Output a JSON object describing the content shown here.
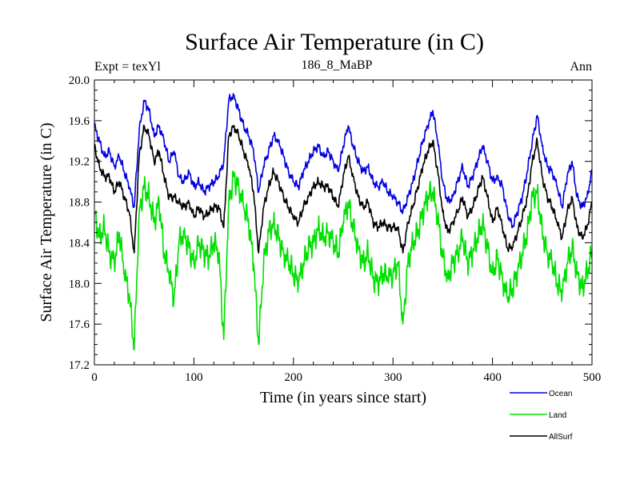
{
  "header": {
    "title": "Surface Air Temperature (in C)",
    "subtitle": "186_8_MaBP",
    "left_label": "Expt = texYl",
    "right_label": "Ann"
  },
  "chart_data": {
    "type": "line",
    "title": "Surface Air Temperature (in C)",
    "xlabel": "Time (in years since start)",
    "ylabel": "Surface Air Temperature (in C)",
    "xlim": [
      0,
      500
    ],
    "ylim": [
      17.2,
      20.0
    ],
    "xticks": [
      0,
      100,
      200,
      300,
      400,
      500
    ],
    "yticks": [
      "17.2",
      "17.6",
      "18.0",
      "18.4",
      "18.8",
      "19.2",
      "19.6",
      "20.0"
    ],
    "grid": false,
    "legend_position": "bottom-right",
    "series": [
      {
        "name": "Ocean",
        "color": "#0000e0",
        "x": [
          0,
          5,
          10,
          15,
          20,
          25,
          30,
          35,
          40,
          45,
          50,
          55,
          60,
          65,
          70,
          75,
          80,
          85,
          90,
          95,
          100,
          105,
          110,
          115,
          120,
          125,
          130,
          135,
          140,
          145,
          150,
          155,
          160,
          165,
          170,
          175,
          180,
          185,
          190,
          195,
          200,
          205,
          210,
          215,
          220,
          225,
          230,
          235,
          240,
          245,
          250,
          255,
          260,
          265,
          270,
          275,
          280,
          285,
          290,
          295,
          300,
          305,
          310,
          315,
          320,
          325,
          330,
          335,
          340,
          345,
          350,
          355,
          360,
          365,
          370,
          375,
          380,
          385,
          390,
          395,
          400,
          405,
          410,
          415,
          420,
          425,
          430,
          435,
          440,
          445,
          450,
          455,
          460,
          465,
          470,
          475,
          480,
          485,
          490,
          495,
          500
        ],
        "y": [
          19.55,
          19.4,
          19.25,
          19.3,
          19.15,
          19.25,
          19.1,
          18.95,
          18.75,
          19.5,
          19.8,
          19.7,
          19.45,
          19.55,
          19.4,
          19.2,
          19.3,
          19.05,
          19.0,
          19.1,
          18.95,
          19.0,
          18.9,
          18.95,
          19.0,
          19.05,
          19.2,
          19.8,
          19.85,
          19.7,
          19.55,
          19.45,
          19.3,
          18.9,
          19.15,
          19.3,
          19.45,
          19.4,
          19.25,
          19.1,
          19.0,
          18.95,
          19.1,
          19.2,
          19.3,
          19.35,
          19.25,
          19.3,
          19.2,
          19.1,
          19.35,
          19.55,
          19.35,
          19.2,
          19.1,
          19.15,
          19.0,
          18.95,
          19.0,
          18.9,
          18.85,
          18.8,
          18.7,
          18.85,
          19.0,
          19.2,
          19.4,
          19.55,
          19.7,
          19.4,
          19.0,
          18.8,
          18.85,
          19.0,
          19.15,
          18.95,
          19.05,
          19.2,
          19.35,
          19.2,
          19.0,
          19.05,
          18.95,
          18.7,
          18.55,
          18.7,
          18.85,
          19.1,
          19.4,
          19.65,
          19.35,
          19.15,
          19.1,
          18.95,
          18.75,
          19.05,
          19.2,
          18.85,
          18.75,
          18.85,
          19.1
        ]
      },
      {
        "name": "Land",
        "color": "#00e000",
        "x": [
          0,
          5,
          10,
          15,
          20,
          25,
          30,
          35,
          40,
          45,
          50,
          55,
          60,
          65,
          70,
          75,
          80,
          85,
          90,
          95,
          100,
          105,
          110,
          115,
          120,
          125,
          130,
          135,
          140,
          145,
          150,
          155,
          160,
          165,
          170,
          175,
          180,
          185,
          190,
          195,
          200,
          205,
          210,
          215,
          220,
          225,
          230,
          235,
          240,
          245,
          250,
          255,
          260,
          265,
          270,
          275,
          280,
          285,
          290,
          295,
          300,
          305,
          310,
          315,
          320,
          325,
          330,
          335,
          340,
          345,
          350,
          355,
          360,
          365,
          370,
          375,
          380,
          385,
          390,
          395,
          400,
          405,
          410,
          415,
          420,
          425,
          430,
          435,
          440,
          445,
          450,
          455,
          460,
          465,
          470,
          475,
          480,
          485,
          490,
          495,
          500
        ],
        "y": [
          18.7,
          18.45,
          18.55,
          18.3,
          18.2,
          18.5,
          18.1,
          17.9,
          17.35,
          18.7,
          18.95,
          18.85,
          18.6,
          18.8,
          18.3,
          18.1,
          17.85,
          18.4,
          18.5,
          18.35,
          18.2,
          18.4,
          18.3,
          18.25,
          18.4,
          18.3,
          17.45,
          18.8,
          19.05,
          18.95,
          18.75,
          18.6,
          18.2,
          17.4,
          18.2,
          18.5,
          18.6,
          18.45,
          18.3,
          18.2,
          18.1,
          18.0,
          18.2,
          18.35,
          18.4,
          18.55,
          18.45,
          18.5,
          18.4,
          18.3,
          18.6,
          18.8,
          18.55,
          18.35,
          18.2,
          18.3,
          18.05,
          18.0,
          18.1,
          18.05,
          18.1,
          18.2,
          17.6,
          18.2,
          18.4,
          18.5,
          18.7,
          18.85,
          18.9,
          18.65,
          18.25,
          18.05,
          18.2,
          18.3,
          18.45,
          18.2,
          18.3,
          18.45,
          18.6,
          18.35,
          18.1,
          18.25,
          18.05,
          17.85,
          17.95,
          18.1,
          18.3,
          18.5,
          18.85,
          18.9,
          18.5,
          18.3,
          18.2,
          18.0,
          17.9,
          18.2,
          18.35,
          18.1,
          17.95,
          18.1,
          18.3
        ]
      },
      {
        "name": "AllSurf",
        "color": "#000000",
        "x": [
          0,
          5,
          10,
          15,
          20,
          25,
          30,
          35,
          40,
          45,
          50,
          55,
          60,
          65,
          70,
          75,
          80,
          85,
          90,
          95,
          100,
          105,
          110,
          115,
          120,
          125,
          130,
          135,
          140,
          145,
          150,
          155,
          160,
          165,
          170,
          175,
          180,
          185,
          190,
          195,
          200,
          205,
          210,
          215,
          220,
          225,
          230,
          235,
          240,
          245,
          250,
          255,
          260,
          265,
          270,
          275,
          280,
          285,
          290,
          295,
          300,
          305,
          310,
          315,
          320,
          325,
          330,
          335,
          340,
          345,
          350,
          355,
          360,
          365,
          370,
          375,
          380,
          385,
          390,
          395,
          400,
          405,
          410,
          415,
          420,
          425,
          430,
          435,
          440,
          445,
          450,
          455,
          460,
          465,
          470,
          475,
          480,
          485,
          490,
          495,
          500
        ],
        "y": [
          19.35,
          19.15,
          19.05,
          19.05,
          18.9,
          19.0,
          18.85,
          18.7,
          18.3,
          19.25,
          19.55,
          19.45,
          19.2,
          19.3,
          19.05,
          18.85,
          18.85,
          18.8,
          18.75,
          18.8,
          18.65,
          18.75,
          18.65,
          18.7,
          18.75,
          18.75,
          18.55,
          19.45,
          19.55,
          19.45,
          19.3,
          19.15,
          18.9,
          18.3,
          18.75,
          18.95,
          19.1,
          19.0,
          18.85,
          18.75,
          18.65,
          18.6,
          18.75,
          18.85,
          18.95,
          19.0,
          18.95,
          18.95,
          18.85,
          18.75,
          19.05,
          19.25,
          19.05,
          18.85,
          18.75,
          18.8,
          18.6,
          18.55,
          18.6,
          18.55,
          18.55,
          18.55,
          18.3,
          18.6,
          18.75,
          18.95,
          19.15,
          19.3,
          19.4,
          19.1,
          18.7,
          18.5,
          18.6,
          18.7,
          18.85,
          18.65,
          18.75,
          18.9,
          19.05,
          18.85,
          18.6,
          18.75,
          18.55,
          18.35,
          18.35,
          18.5,
          18.65,
          18.85,
          19.2,
          19.4,
          19.05,
          18.85,
          18.75,
          18.6,
          18.45,
          18.7,
          18.85,
          18.55,
          18.45,
          18.55,
          18.8
        ]
      }
    ]
  }
}
